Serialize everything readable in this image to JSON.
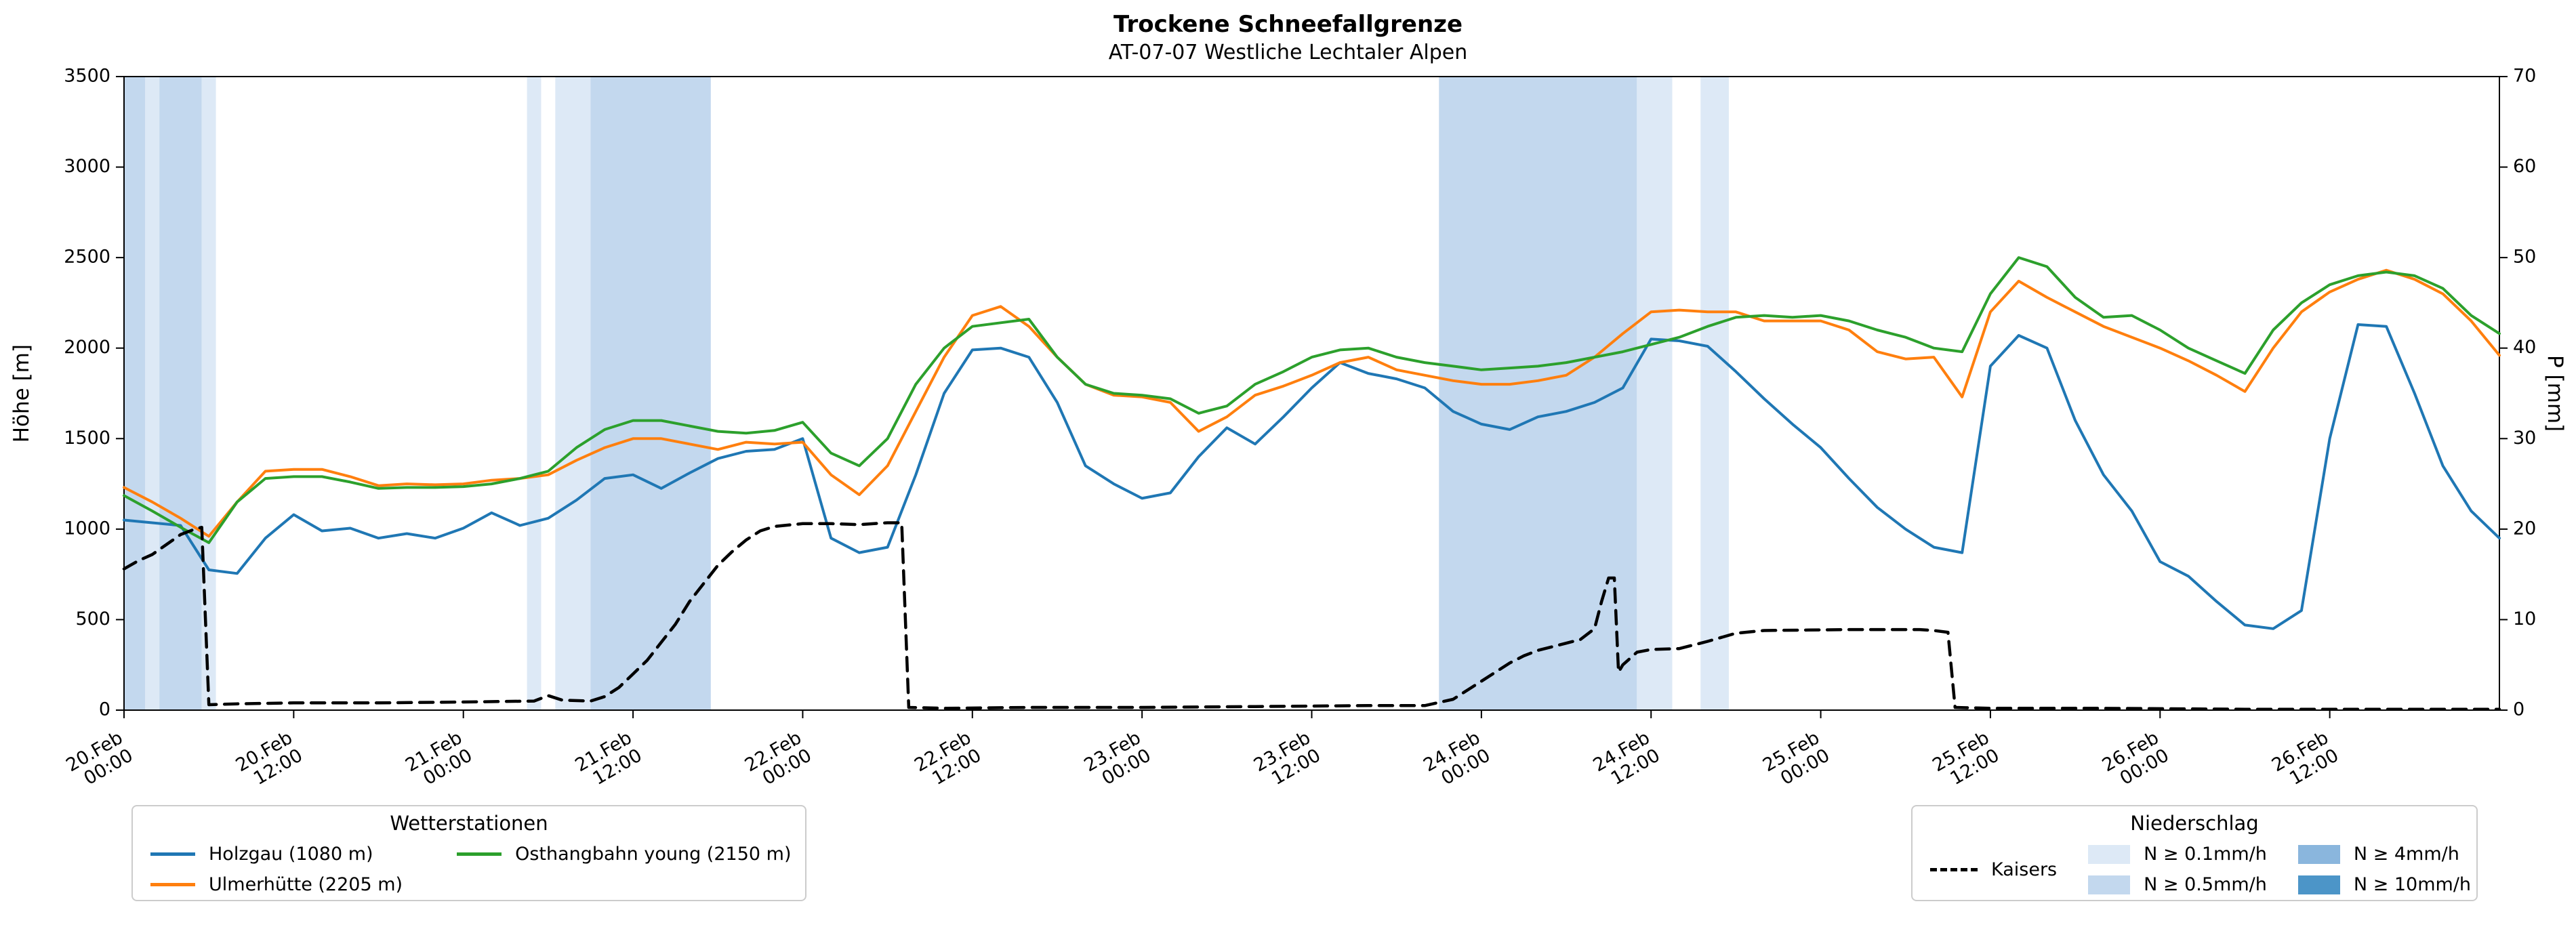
{
  "title": "Trockene Schneefallgrenze",
  "subtitle": "AT-07-07 Westliche Lechtaler Alpen",
  "axes": {
    "left_label": "Höhe [m]",
    "right_label": "P [mm]",
    "left_min": 0,
    "left_max": 3500,
    "left_tick_step": 500,
    "right_min": 0,
    "right_max": 70,
    "right_tick_step": 10,
    "x_ticks": [
      {
        "hour": 0,
        "date": "20.Feb",
        "time": "00:00"
      },
      {
        "hour": 12,
        "date": "20.Feb",
        "time": "12:00"
      },
      {
        "hour": 24,
        "date": "21.Feb",
        "time": "00:00"
      },
      {
        "hour": 36,
        "date": "21.Feb",
        "time": "12:00"
      },
      {
        "hour": 48,
        "date": "22.Feb",
        "time": "00:00"
      },
      {
        "hour": 60,
        "date": "22.Feb",
        "time": "12:00"
      },
      {
        "hour": 72,
        "date": "23.Feb",
        "time": "00:00"
      },
      {
        "hour": 84,
        "date": "23.Feb",
        "time": "12:00"
      },
      {
        "hour": 96,
        "date": "24.Feb",
        "time": "00:00"
      },
      {
        "hour": 108,
        "date": "24.Feb",
        "time": "12:00"
      },
      {
        "hour": 120,
        "date": "25.Feb",
        "time": "00:00"
      },
      {
        "hour": 132,
        "date": "25.Feb",
        "time": "12:00"
      },
      {
        "hour": 144,
        "date": "26.Feb",
        "time": "00:00"
      },
      {
        "hour": 156,
        "date": "26.Feb",
        "time": "12:00"
      }
    ]
  },
  "legends": {
    "stations_title": "Wetterstationen",
    "precip_title": "Niederschlag"
  },
  "chart_data": {
    "type": "line",
    "title": "Trockene Schneefallgrenze",
    "subtitle": "AT-07-07 Westliche Lechtaler Alpen",
    "x_unit": "hours since 20.Feb 00:00",
    "x_start": 0,
    "x_step": 2,
    "x_end": 168,
    "left_axis": {
      "label": "Höhe [m]",
      "range": [
        0,
        3500
      ]
    },
    "right_axis": {
      "label": "P [mm]",
      "range": [
        0,
        70
      ]
    },
    "series": [
      {
        "name": "Holzgau (1080 m)",
        "axis": "left",
        "color": "#1f77b4",
        "style": "solid",
        "values": [
          1050,
          1035,
          1020,
          775,
          755,
          950,
          1080,
          990,
          1005,
          950,
          975,
          950,
          1005,
          1090,
          1020,
          1060,
          1160,
          1280,
          1300,
          1225,
          1310,
          1390,
          1430,
          1440,
          1500,
          950,
          870,
          900,
          1300,
          1750,
          1990,
          2000,
          1950,
          1700,
          1350,
          1250,
          1170,
          1200,
          1400,
          1560,
          1470,
          1620,
          1780,
          1920,
          1860,
          1830,
          1780,
          1650,
          1580,
          1550,
          1620,
          1650,
          1700,
          1780,
          2050,
          2040,
          2010,
          1870,
          1720,
          1580,
          1450,
          1280,
          1120,
          1000,
          900,
          870,
          1900,
          2070,
          2000,
          1600,
          1300,
          1100,
          820,
          740,
          600,
          470,
          450,
          550,
          1500,
          2130,
          2120,
          1750,
          1350,
          1100,
          950
        ]
      },
      {
        "name": "Ulmerhütte (2205 m)",
        "axis": "left",
        "color": "#ff7f0e",
        "style": "solid",
        "values": [
          1230,
          1150,
          1060,
          960,
          1150,
          1320,
          1330,
          1330,
          1290,
          1240,
          1250,
          1245,
          1250,
          1270,
          1280,
          1300,
          1380,
          1450,
          1500,
          1500,
          1470,
          1440,
          1480,
          1470,
          1480,
          1300,
          1190,
          1350,
          1650,
          1950,
          2180,
          2230,
          2120,
          1950,
          1800,
          1740,
          1730,
          1700,
          1540,
          1620,
          1740,
          1790,
          1850,
          1920,
          1950,
          1880,
          1850,
          1820,
          1800,
          1800,
          1820,
          1850,
          1950,
          2080,
          2200,
          2210,
          2200,
          2200,
          2150,
          2150,
          2150,
          2100,
          1980,
          1940,
          1950,
          1730,
          2200,
          2370,
          2280,
          2200,
          2120,
          2060,
          2000,
          1930,
          1850,
          1760,
          2000,
          2200,
          2310,
          2380,
          2430,
          2380,
          2300,
          2150,
          1960
        ]
      },
      {
        "name": "Osthangbahn young (2150 m)",
        "axis": "left",
        "color": "#2ca02c",
        "style": "solid",
        "values": [
          1185,
          1100,
          1010,
          925,
          1150,
          1280,
          1290,
          1290,
          1260,
          1225,
          1230,
          1230,
          1235,
          1250,
          1280,
          1320,
          1450,
          1550,
          1600,
          1600,
          1570,
          1540,
          1530,
          1545,
          1590,
          1420,
          1350,
          1500,
          1800,
          2000,
          2120,
          2140,
          2160,
          1950,
          1800,
          1750,
          1740,
          1720,
          1640,
          1680,
          1800,
          1870,
          1950,
          1990,
          2000,
          1950,
          1920,
          1900,
          1880,
          1890,
          1900,
          1920,
          1950,
          1980,
          2020,
          2060,
          2120,
          2170,
          2180,
          2170,
          2180,
          2150,
          2100,
          2060,
          2000,
          1980,
          2300,
          2500,
          2450,
          2280,
          2170,
          2180,
          2100,
          2000,
          1930,
          1860,
          2100,
          2250,
          2350,
          2400,
          2420,
          2400,
          2330,
          2180,
          2080
        ]
      },
      {
        "name": "Kaisers",
        "axis": "right",
        "color": "#000000",
        "style": "dashed",
        "points": [
          [
            0,
            15.6
          ],
          [
            1,
            16.5
          ],
          [
            2,
            17.2
          ],
          [
            3,
            18.3
          ],
          [
            4,
            19.4
          ],
          [
            5,
            20.0
          ],
          [
            5.5,
            20.2
          ],
          [
            6,
            0.6
          ],
          [
            8,
            0.7
          ],
          [
            12,
            0.8
          ],
          [
            18,
            0.8
          ],
          [
            24,
            0.9
          ],
          [
            29,
            1.0
          ],
          [
            30,
            1.6
          ],
          [
            31,
            1.1
          ],
          [
            33,
            1.0
          ],
          [
            34,
            1.5
          ],
          [
            35,
            2.5
          ],
          [
            36,
            4.0
          ],
          [
            37,
            5.5
          ],
          [
            38,
            7.5
          ],
          [
            39,
            9.5
          ],
          [
            40,
            12.0
          ],
          [
            41,
            14.0
          ],
          [
            42,
            16.0
          ],
          [
            43,
            17.5
          ],
          [
            44,
            18.8
          ],
          [
            45,
            19.8
          ],
          [
            46,
            20.3
          ],
          [
            48,
            20.6
          ],
          [
            50,
            20.6
          ],
          [
            52,
            20.5
          ],
          [
            54,
            20.7
          ],
          [
            55,
            20.7
          ],
          [
            55.5,
            0.3
          ],
          [
            58,
            0.2
          ],
          [
            64,
            0.3
          ],
          [
            72,
            0.3
          ],
          [
            80,
            0.4
          ],
          [
            88,
            0.5
          ],
          [
            92,
            0.5
          ],
          [
            94,
            1.2
          ],
          [
            95,
            2.2
          ],
          [
            96,
            3.2
          ],
          [
            97,
            4.2
          ],
          [
            98,
            5.2
          ],
          [
            99,
            6.0
          ],
          [
            100,
            6.6
          ],
          [
            101,
            7.0
          ],
          [
            102,
            7.4
          ],
          [
            103,
            7.8
          ],
          [
            104,
            9.0
          ],
          [
            104.5,
            12.0
          ],
          [
            105,
            14.6
          ],
          [
            105.4,
            14.6
          ],
          [
            105.7,
            4.2
          ],
          [
            106,
            5.0
          ],
          [
            107,
            6.4
          ],
          [
            108,
            6.7
          ],
          [
            110,
            6.8
          ],
          [
            112,
            7.6
          ],
          [
            114,
            8.5
          ],
          [
            116,
            8.8
          ],
          [
            122,
            8.9
          ],
          [
            127,
            8.9
          ],
          [
            128,
            8.8
          ],
          [
            129,
            8.6
          ],
          [
            129.5,
            0.3
          ],
          [
            132,
            0.2
          ],
          [
            140,
            0.2
          ],
          [
            150,
            0.1
          ],
          [
            160,
            0.1
          ],
          [
            168,
            0.1
          ]
        ]
      }
    ],
    "precip_bands": {
      "levels": [
        {
          "label": "N ≥ 0.1mm/h",
          "color": "#dde9f6"
        },
        {
          "label": "N ≥ 0.5mm/h",
          "color": "#c3d8ee"
        },
        {
          "label": "N ≥ 4mm/h",
          "color": "#8ab6dd"
        },
        {
          "label": "N ≥ 10mm/h",
          "color": "#4c95c8"
        }
      ],
      "bands": [
        [
          0,
          1.5,
          2
        ],
        [
          1.5,
          2.5,
          1
        ],
        [
          2.5,
          5.5,
          2
        ],
        [
          5.5,
          6.5,
          1
        ],
        [
          28.5,
          29.5,
          1
        ],
        [
          30.5,
          33,
          1
        ],
        [
          33,
          41.5,
          2
        ],
        [
          93,
          107,
          2
        ],
        [
          107,
          109.5,
          1
        ],
        [
          111.5,
          113.5,
          1
        ]
      ]
    }
  }
}
